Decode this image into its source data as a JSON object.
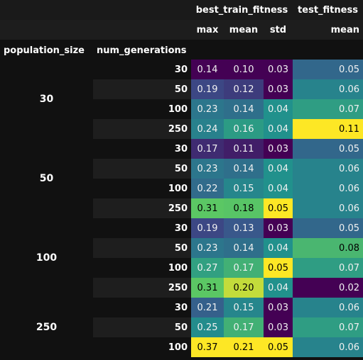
{
  "chart_data": {
    "type": "table",
    "columns": {
      "groups": [
        {
          "label": "best_train_fitness",
          "subcolumns": [
            "max",
            "mean",
            "std"
          ]
        },
        {
          "label": "test_fitness",
          "subcolumns": [
            "mean"
          ]
        }
      ]
    },
    "index_names": [
      "population_size",
      "num_generations"
    ],
    "rows": [
      {
        "population_size": "30",
        "num_generations": "30",
        "values": [
          "0.14",
          "0.10",
          "0.03",
          "0.05"
        ]
      },
      {
        "population_size": "30",
        "num_generations": "50",
        "values": [
          "0.19",
          "0.12",
          "0.03",
          "0.06"
        ]
      },
      {
        "population_size": "30",
        "num_generations": "100",
        "values": [
          "0.23",
          "0.14",
          "0.04",
          "0.07"
        ]
      },
      {
        "population_size": "30",
        "num_generations": "250",
        "values": [
          "0.24",
          "0.16",
          "0.04",
          "0.11"
        ]
      },
      {
        "population_size": "50",
        "num_generations": "30",
        "values": [
          "0.17",
          "0.11",
          "0.03",
          "0.05"
        ]
      },
      {
        "population_size": "50",
        "num_generations": "50",
        "values": [
          "0.23",
          "0.14",
          "0.04",
          "0.06"
        ]
      },
      {
        "population_size": "50",
        "num_generations": "100",
        "values": [
          "0.22",
          "0.15",
          "0.04",
          "0.06"
        ]
      },
      {
        "population_size": "50",
        "num_generations": "250",
        "values": [
          "0.31",
          "0.18",
          "0.05",
          "0.06"
        ]
      },
      {
        "population_size": "100",
        "num_generations": "30",
        "values": [
          "0.19",
          "0.13",
          "0.03",
          "0.05"
        ]
      },
      {
        "population_size": "100",
        "num_generations": "50",
        "values": [
          "0.23",
          "0.14",
          "0.04",
          "0.08"
        ]
      },
      {
        "population_size": "100",
        "num_generations": "100",
        "values": [
          "0.27",
          "0.17",
          "0.05",
          "0.07"
        ]
      },
      {
        "population_size": "100",
        "num_generations": "250",
        "values": [
          "0.31",
          "0.20",
          "0.04",
          "0.02"
        ]
      },
      {
        "population_size": "250",
        "num_generations": "30",
        "values": [
          "0.21",
          "0.15",
          "0.03",
          "0.06"
        ]
      },
      {
        "population_size": "250",
        "num_generations": "50",
        "values": [
          "0.25",
          "0.17",
          "0.03",
          "0.07"
        ]
      },
      {
        "population_size": "250",
        "num_generations": "100",
        "values": [
          "0.37",
          "0.21",
          "0.05",
          "0.06"
        ]
      }
    ],
    "colormap": "viridis",
    "colormap_stops": [
      "#440154",
      "#3b528b",
      "#21918c",
      "#5ec962",
      "#fde725"
    ]
  }
}
